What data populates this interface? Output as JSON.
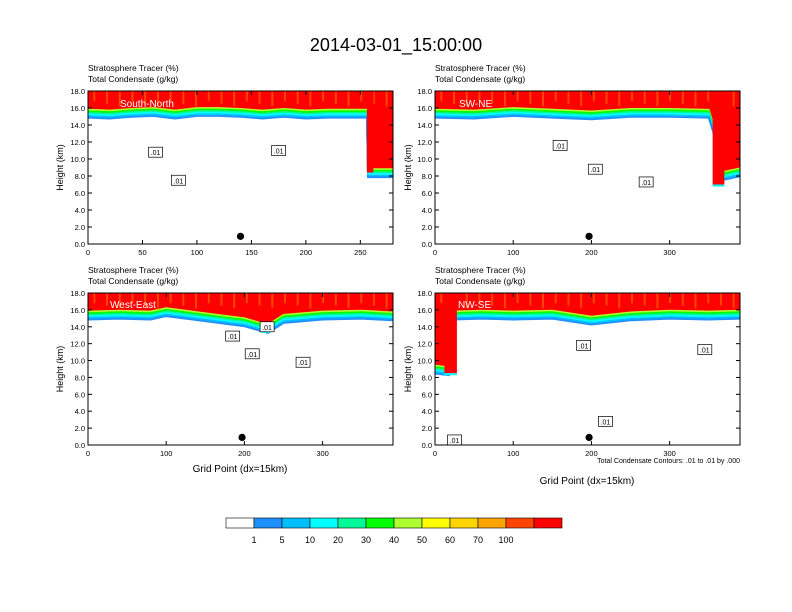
{
  "figure": {
    "title": "2014-03-01_15:00:00",
    "panel_subtitle_line1": "Stratosphere Tracer   (%)",
    "panel_subtitle_line2": "Total Condensate   (g/kg)",
    "ylabel": "Height (km)",
    "xlabel": "Grid Point (dx=15km)",
    "contour_note": "Total Condensate Contours: .01 to .01 by .000",
    "contour_label": ".01"
  },
  "colorbar": {
    "colors": [
      "#ffffff",
      "#1e90ff",
      "#00bfff",
      "#00ffff",
      "#00fa9a",
      "#00ff00",
      "#adff2f",
      "#ffff00",
      "#ffd700",
      "#ffa500",
      "#ff4500",
      "#ff0000"
    ],
    "labels": [
      "1",
      "5",
      "10",
      "20",
      "30",
      "40",
      "50",
      "60",
      "70",
      "100"
    ]
  },
  "chart_data": [
    {
      "type": "heatmap",
      "name": "South-North",
      "xlim": [
        0,
        280
      ],
      "xticks": [
        "0",
        "50",
        "100",
        "150",
        "200",
        "250"
      ],
      "ylim": [
        0,
        18
      ],
      "yticks": [
        "0.0",
        "2.0",
        "4.0",
        "6.0",
        "8.0",
        "10.0",
        "12.0",
        "14.0",
        "16.0",
        "18.0"
      ],
      "tracer_base_km": [
        [
          0,
          15.4
        ],
        [
          20,
          15.3
        ],
        [
          40,
          15.5
        ],
        [
          60,
          15.6
        ],
        [
          80,
          15.3
        ],
        [
          100,
          15.6
        ],
        [
          120,
          15.6
        ],
        [
          140,
          15.5
        ],
        [
          160,
          15.3
        ],
        [
          180,
          15.5
        ],
        [
          200,
          15.3
        ],
        [
          220,
          15.4
        ],
        [
          240,
          15.4
        ],
        [
          256,
          15.4
        ],
        [
          257,
          8.4
        ],
        [
          280,
          8.4
        ]
      ],
      "intrusion": {
        "x": [
          256,
          262
        ],
        "y_bottom_km": 8.4
      },
      "marker_x": 140,
      "contour_labels_x_y": [
        [
          62,
          10.8
        ],
        [
          83,
          7.5
        ],
        [
          175,
          11.0
        ]
      ]
    },
    {
      "type": "heatmap",
      "name": "SW-NE",
      "xlim": [
        0,
        390
      ],
      "xticks": [
        "0",
        "100",
        "200",
        "300"
      ],
      "ylim": [
        0,
        18
      ],
      "yticks": [
        "0.0",
        "2.0",
        "4.0",
        "6.0",
        "8.0",
        "10.0",
        "12.0",
        "14.0",
        "16.0",
        "18.0"
      ],
      "tracer_base_km": [
        [
          0,
          15.4
        ],
        [
          50,
          15.3
        ],
        [
          100,
          15.6
        ],
        [
          150,
          15.4
        ],
        [
          200,
          15.2
        ],
        [
          250,
          15.5
        ],
        [
          300,
          15.5
        ],
        [
          350,
          15.4
        ],
        [
          358,
          13.0
        ],
        [
          365,
          8.0
        ],
        [
          375,
          8.2
        ],
        [
          390,
          8.5
        ]
      ],
      "intrusion": {
        "x": [
          355,
          370
        ],
        "y_bottom_km": 7.0
      },
      "marker_x": 197,
      "contour_labels_x_y": [
        [
          160,
          11.6
        ],
        [
          205,
          8.8
        ],
        [
          270,
          7.3
        ]
      ]
    },
    {
      "type": "heatmap",
      "name": "West-East",
      "xlim": [
        0,
        390
      ],
      "xticks": [
        "0",
        "100",
        "200",
        "300"
      ],
      "ylim": [
        0,
        18
      ],
      "yticks": [
        "0.0",
        "2.0",
        "4.0",
        "6.0",
        "8.0",
        "10.0",
        "12.0",
        "14.0",
        "16.0",
        "18.0"
      ],
      "tracer_base_km": [
        [
          0,
          15.4
        ],
        [
          40,
          15.5
        ],
        [
          80,
          15.4
        ],
        [
          100,
          15.8
        ],
        [
          150,
          15.2
        ],
        [
          200,
          14.6
        ],
        [
          230,
          13.8
        ],
        [
          250,
          15.0
        ],
        [
          300,
          15.4
        ],
        [
          350,
          15.5
        ],
        [
          390,
          15.3
        ]
      ],
      "intrusion": {
        "x": [
          222,
          232
        ],
        "y_bottom_km": 13.5
      },
      "marker_x": 197,
      "contour_labels_x_y": [
        [
          185,
          12.9
        ],
        [
          210,
          10.8
        ],
        [
          275,
          9.8
        ],
        [
          229,
          14.0
        ]
      ]
    },
    {
      "type": "heatmap",
      "name": "NW-SE",
      "xlim": [
        0,
        390
      ],
      "xticks": [
        "0",
        "100",
        "200",
        "300"
      ],
      "ylim": [
        0,
        18
      ],
      "yticks": [
        "0.0",
        "2.0",
        "4.0",
        "6.0",
        "8.0",
        "10.0",
        "12.0",
        "14.0",
        "16.0",
        "18.0"
      ],
      "tracer_base_km": [
        [
          0,
          9.0
        ],
        [
          18,
          8.8
        ],
        [
          22,
          15.4
        ],
        [
          60,
          15.5
        ],
        [
          100,
          15.4
        ],
        [
          150,
          15.5
        ],
        [
          200,
          14.8
        ],
        [
          250,
          15.3
        ],
        [
          300,
          15.5
        ],
        [
          350,
          15.4
        ],
        [
          390,
          15.5
        ]
      ],
      "intrusion": {
        "x": [
          12,
          28
        ],
        "y_bottom_km": 8.5
      },
      "marker_x": 197,
      "contour_labels_x_y": [
        [
          190,
          11.8
        ],
        [
          218,
          2.8
        ],
        [
          345,
          11.3
        ],
        [
          25,
          0.6
        ]
      ]
    }
  ]
}
